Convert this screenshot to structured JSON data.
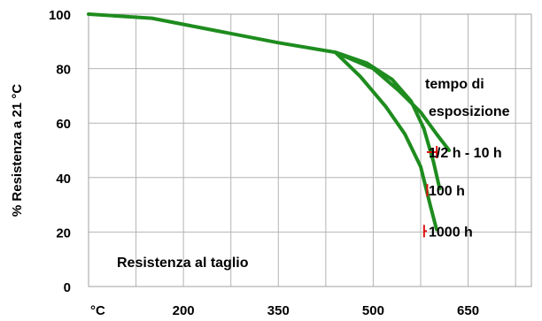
{
  "chart_data": {
    "type": "line",
    "ylabel": "% Resistenza a 21 °C",
    "xlim": [
      50,
      750
    ],
    "ylim": [
      0,
      100
    ],
    "x_ticks": [
      {
        "value": 50,
        "label": "°C"
      },
      {
        "value": 200,
        "label": "200"
      },
      {
        "value": 350,
        "label": "350"
      },
      {
        "value": 500,
        "label": "500"
      },
      {
        "value": 650,
        "label": "650"
      }
    ],
    "y_ticks": [
      {
        "value": 0,
        "label": "0",
        "color": "#000000"
      },
      {
        "value": 20,
        "label": "20",
        "color": "#000000"
      },
      {
        "value": 40,
        "label": "40",
        "color": "#000000"
      },
      {
        "value": 60,
        "label": "60",
        "color": "#000000"
      },
      {
        "value": 80,
        "label": "80",
        "color": "#000000"
      },
      {
        "value": 100,
        "label": "100",
        "color": "#1a1acc"
      }
    ],
    "grid": true,
    "line_color": "#1e8c1e",
    "leader_color": "#e01010",
    "series": [
      {
        "name": "1/2 h - 10 h",
        "x": [
          50,
          150,
          250,
          350,
          440,
          500,
          540,
          575,
          600,
          620
        ],
        "y": [
          100,
          98.5,
          94,
          89.5,
          86,
          80,
          72,
          64,
          56,
          50
        ]
      },
      {
        "name": "100 h",
        "x": [
          440,
          490,
          530,
          560,
          580,
          595,
          605
        ],
        "y": [
          86,
          82,
          76,
          68,
          58,
          46,
          36
        ]
      },
      {
        "name": "1000 h",
        "x": [
          440,
          480,
          520,
          550,
          575,
          590,
          600
        ],
        "y": [
          86,
          77,
          66,
          56,
          44,
          30,
          21
        ]
      }
    ],
    "legend_title": [
      "tempo di",
      "esposizione"
    ],
    "annotation": "Resistenza al taglio"
  }
}
